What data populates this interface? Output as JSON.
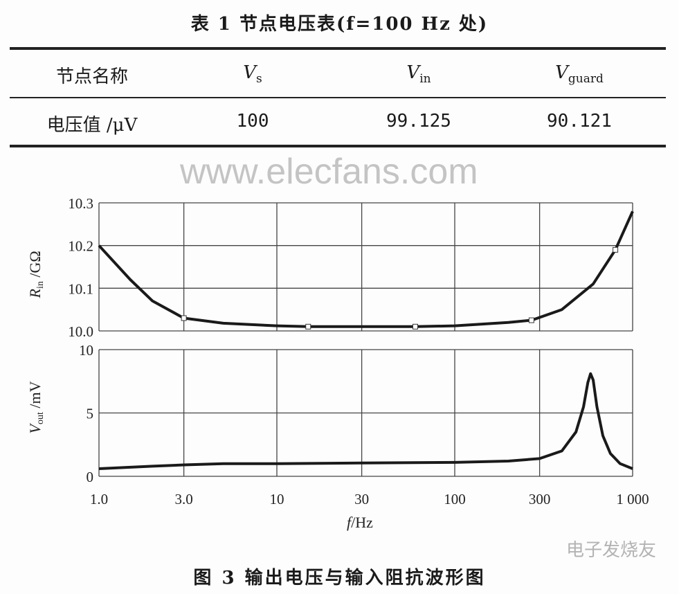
{
  "table": {
    "title": "表 1   节点电压表(f=100 Hz 处)",
    "header": {
      "label": "节点名称",
      "cols": [
        {
          "main": "V",
          "sub": "s"
        },
        {
          "main": "V",
          "sub": "in"
        },
        {
          "main": "V",
          "sub": "guard"
        }
      ]
    },
    "row": {
      "label": "电压值 /μV",
      "values": [
        "100",
        "99.125",
        "90.121"
      ]
    }
  },
  "figure": {
    "caption": "图 3   输出电压与输入阻抗波形图"
  },
  "watermarks": [
    "www.elecfans.com",
    "电子发烧友"
  ],
  "chart_data": [
    {
      "type": "line",
      "ylabel": {
        "main": "R",
        "sub": "in",
        "unit": " /GΩ"
      },
      "xscale": "log",
      "xlim": [
        1,
        1000
      ],
      "ylim": [
        10.0,
        10.3
      ],
      "yticks": [
        "10.0",
        "10.1",
        "10.2",
        "10.3"
      ],
      "grid": true,
      "x": [
        1,
        1.5,
        2,
        3,
        5,
        10,
        15,
        30,
        60,
        100,
        200,
        270,
        400,
        600,
        800,
        1000
      ],
      "values": [
        10.2,
        10.12,
        10.07,
        10.03,
        10.018,
        10.012,
        10.01,
        10.01,
        10.01,
        10.012,
        10.02,
        10.025,
        10.05,
        10.11,
        10.19,
        10.28
      ],
      "markers_x": [
        3,
        15,
        60,
        270,
        800
      ],
      "color": "#1a1a1a"
    },
    {
      "type": "line",
      "ylabel": {
        "main": "V",
        "sub": "out",
        "unit": " /mV"
      },
      "xlabel": {
        "main": "f",
        "unit": "/Hz"
      },
      "xscale": "log",
      "xlim": [
        1,
        1000
      ],
      "ylim": [
        0,
        10
      ],
      "xticks": [
        "1.0",
        "3.0",
        "10",
        "30",
        "100",
        "300",
        "1 000"
      ],
      "xtick_values": [
        1,
        3,
        10,
        30,
        100,
        300,
        1000
      ],
      "yticks": [
        "0",
        "5",
        "10"
      ],
      "grid": true,
      "x": [
        1,
        2,
        3,
        5,
        10,
        30,
        100,
        200,
        300,
        400,
        480,
        530,
        560,
        580,
        600,
        630,
        680,
        750,
        850,
        1000
      ],
      "values": [
        0.6,
        0.8,
        0.9,
        1.0,
        1.0,
        1.05,
        1.1,
        1.2,
        1.4,
        2.0,
        3.5,
        5.5,
        7.4,
        8.1,
        7.6,
        5.5,
        3.2,
        1.8,
        1.0,
        0.6
      ],
      "color": "#1a1a1a"
    }
  ]
}
